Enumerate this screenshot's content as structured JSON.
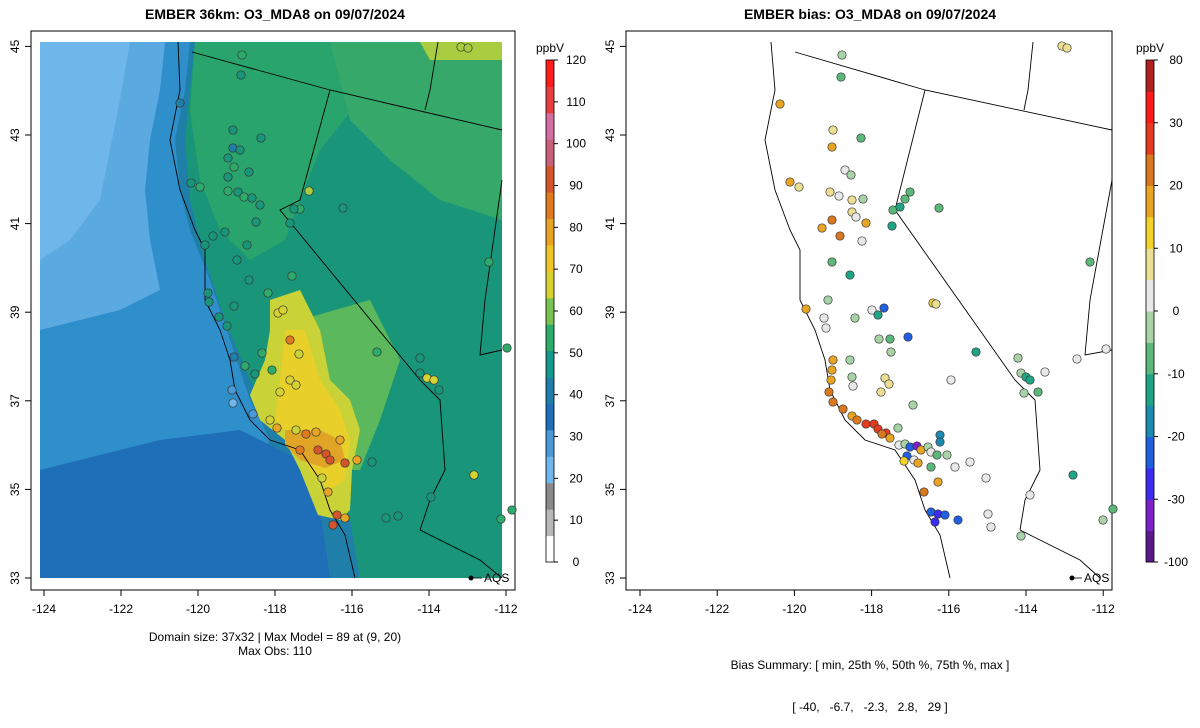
{
  "left_panel": {
    "title": "EMBER 36km: O3_MDA8 on 09/07/2024",
    "footer_line1": "Domain size: 37x32 | Max Model = 89 at (9, 20)",
    "footer_line2": "Max Obs: 110",
    "colorbar": {
      "unit": "ppbV",
      "ticks": [
        "120",
        "110",
        "100",
        "90",
        "80",
        "70",
        "60",
        "50",
        "40",
        "30",
        "20",
        "10",
        "0"
      ],
      "colors": [
        "#ffffff",
        "#b8b8b8",
        "#8a8a8a",
        "#6fb7ea",
        "#4a9ad8",
        "#1f6fb8",
        "#1f7fa8",
        "#14988a",
        "#2eaa6a",
        "#78c34f",
        "#d6d232",
        "#f0c52a",
        "#e8a323",
        "#e07a1f",
        "#d4552a",
        "#c8607a",
        "#d36fa0",
        "#ea3e3e",
        "#ff1c1c"
      ]
    },
    "legend_label": "AQS"
  },
  "right_panel": {
    "title": "EMBER bias: O3_MDA8 on 09/07/2024",
    "footer_line1": "Bias Summary: [ min, 25th %, 50th %, 75th %, max ]",
    "footer_line2": "[ -40,   -6.7,   -2.3,   2.8,   29 ]",
    "colorbar": {
      "unit": "ppbV",
      "ticks": [
        "80",
        "30",
        "20",
        "10",
        "0",
        "-10",
        "-20",
        "-30",
        "-100"
      ],
      "colors": [
        "#5a1a8a",
        "#7a22c8",
        "#3a2cf0",
        "#1f5fe0",
        "#1f8ab0",
        "#1fa586",
        "#5bb87a",
        "#a7d3a7",
        "#e8e8e8",
        "#eadf92",
        "#f0d32a",
        "#e8a523",
        "#d9791f",
        "#e43a1f",
        "#ff1a1a",
        "#b02020"
      ]
    },
    "legend_label": "AQS"
  },
  "axes": {
    "x_ticks": [
      "-124",
      "-122",
      "-120",
      "-118",
      "-116",
      "-114",
      "-112"
    ],
    "y_ticks": [
      "33",
      "35",
      "37",
      "39",
      "41",
      "43",
      "45"
    ]
  }
}
